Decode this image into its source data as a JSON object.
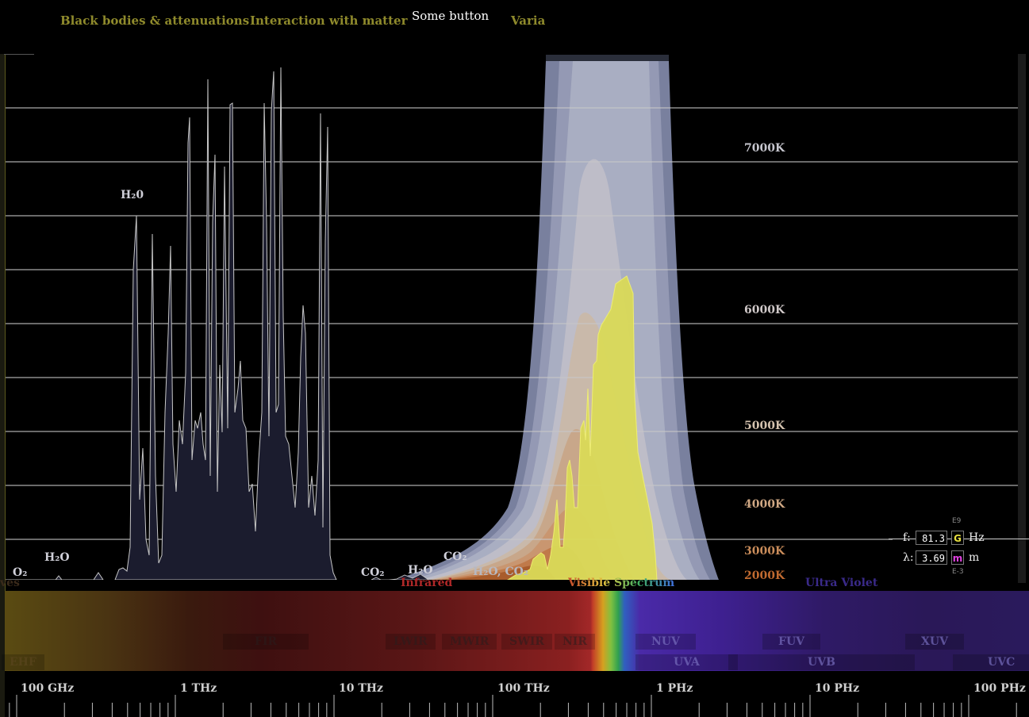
{
  "nav": {
    "items": [
      {
        "label": "Black bodies & attenuations"
      },
      {
        "label": "Interaction with matter"
      },
      {
        "label": "Some button"
      },
      {
        "label": "Varia"
      }
    ]
  },
  "temperatures": [
    "7000K",
    "6000K",
    "5000K",
    "4000K",
    "3000K",
    "2000K"
  ],
  "molecules": {
    "h2o_peak": "H₂0",
    "o2": "O₂",
    "h2o_left": "H₂O",
    "co2_a": "CO₂",
    "h2o_mid": "H₂O",
    "co2_b": "CO₂",
    "h2o_co2": "H₂O, CO₂"
  },
  "readout": {
    "f_label": "f:",
    "f_value": "81.3",
    "f_prefix": "G",
    "f_exp": "E9",
    "f_unit": "Hz",
    "l_label": "λ:",
    "l_value": "3.69",
    "l_prefix": "m",
    "l_exp": "E-3",
    "l_unit": "m"
  },
  "bands": {
    "cut_left": "ves",
    "infrared": "Infrared",
    "visible": "Visible Spectrum",
    "uv": "Ultra Violet"
  },
  "subbands": {
    "ehf": "EHF",
    "fir": "FIR",
    "lwir": "LWIR",
    "mwir": "MWIR",
    "swir": "SWIR",
    "nir": "NIR",
    "nuv": "NUV",
    "fuv": "FUV",
    "xuv": "XUV",
    "uva": "UVA",
    "uvb": "UVB",
    "uvc": "UVC"
  },
  "freq_axis": [
    "100 GHz",
    "1 THz",
    "10 THz",
    "100 THz",
    "1 PHz",
    "10 PHz",
    "100 PHz"
  ],
  "colors": {
    "nav_text": "#8f8a2c",
    "infrared_title": "#b02828",
    "uv_title": "#3a2a8a",
    "prefix_g": "#e8e040",
    "prefix_m": "#e040e0"
  }
}
